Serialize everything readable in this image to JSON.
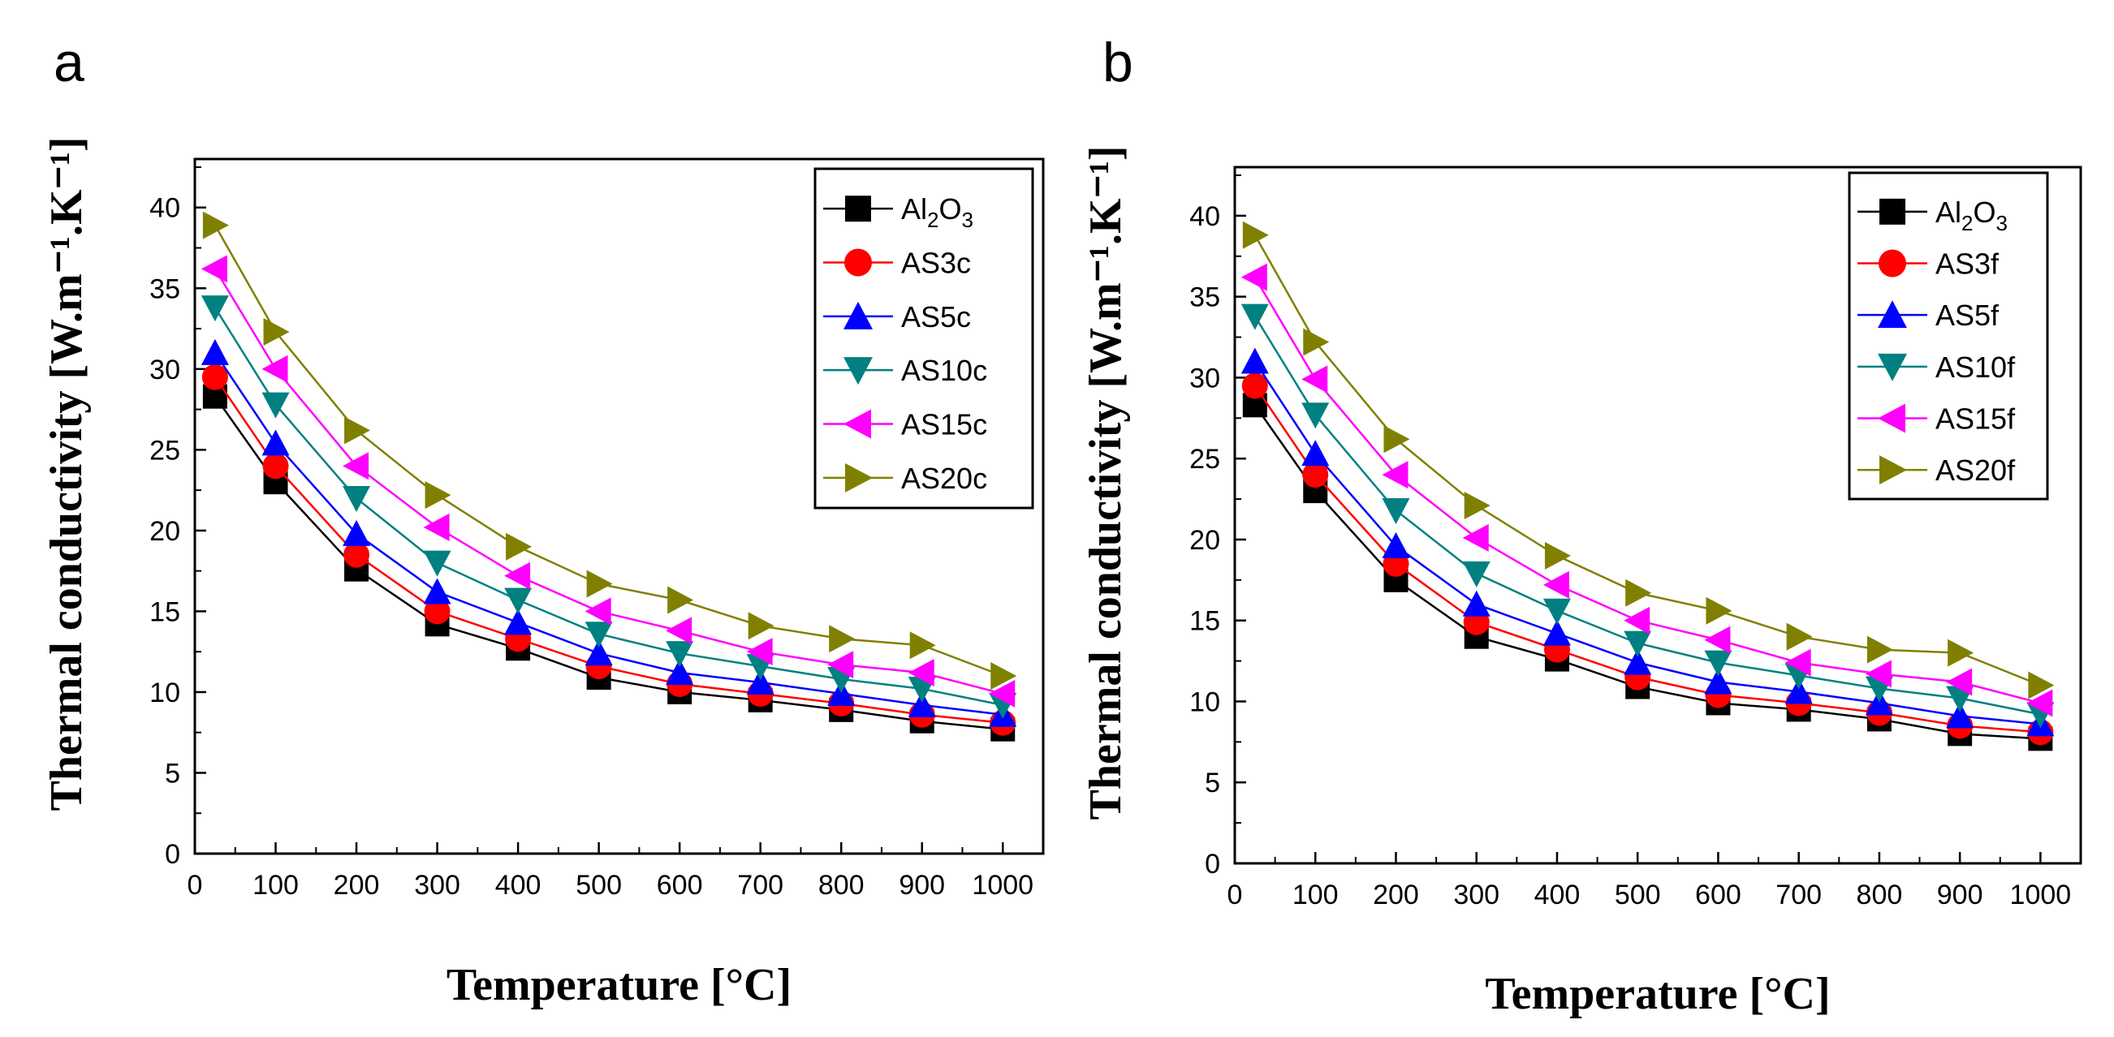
{
  "colors": {
    "Al2O3": "#000000",
    "AS3": "#ff0000",
    "AS5": "#0000ff",
    "AS10": "#008080",
    "AS15": "#ff00ff",
    "AS20": "#808000"
  },
  "chart_data": [
    {
      "type": "line",
      "panel_label": "a",
      "xlabel": "Temperature [°C]",
      "ylabel": "Thermal conductivity [W.m⁻¹.K⁻¹]",
      "xlim": [
        0,
        1050
      ],
      "ylim": [
        0,
        43
      ],
      "xticks": [
        0,
        100,
        200,
        300,
        400,
        500,
        600,
        700,
        800,
        900,
        1000
      ],
      "yticks": [
        0,
        5,
        10,
        15,
        20,
        25,
        30,
        35,
        40
      ],
      "legend_position": "top-right",
      "x": [
        25,
        100,
        200,
        300,
        400,
        500,
        600,
        700,
        800,
        900,
        1000
      ],
      "series": [
        {
          "name": "Al2O3",
          "label_base": "Al",
          "sub1": "2",
          "label_mid": "O",
          "sub2": "3",
          "marker": "square",
          "color_key": "Al2O3",
          "values": [
            28.3,
            23.0,
            17.6,
            14.2,
            12.7,
            10.9,
            10.0,
            9.5,
            8.9,
            8.2,
            7.7
          ]
        },
        {
          "name": "AS3c",
          "marker": "circle",
          "color_key": "AS3",
          "values": [
            29.5,
            24.0,
            18.5,
            15.0,
            13.3,
            11.6,
            10.5,
            9.9,
            9.3,
            8.6,
            8.1
          ]
        },
        {
          "name": "AS5c",
          "marker": "triangle-up",
          "color_key": "AS5",
          "values": [
            31.0,
            25.4,
            19.8,
            16.2,
            14.3,
            12.4,
            11.2,
            10.6,
            9.9,
            9.2,
            8.6
          ]
        },
        {
          "name": "AS10c",
          "marker": "triangle-down",
          "color_key": "AS10",
          "values": [
            33.8,
            27.8,
            22.0,
            18.0,
            15.7,
            13.6,
            12.4,
            11.6,
            10.8,
            10.2,
            9.2
          ]
        },
        {
          "name": "AS15c",
          "marker": "triangle-left",
          "color_key": "AS15",
          "values": [
            36.2,
            30.0,
            24.0,
            20.2,
            17.2,
            15.0,
            13.8,
            12.5,
            11.7,
            11.2,
            9.9
          ]
        },
        {
          "name": "AS20c",
          "marker": "triangle-right",
          "color_key": "AS20",
          "values": [
            38.9,
            32.3,
            26.2,
            22.2,
            19.0,
            16.7,
            15.7,
            14.1,
            13.3,
            12.9,
            11.0
          ]
        }
      ]
    },
    {
      "type": "line",
      "panel_label": "b",
      "xlabel": "Temperature [°C]",
      "ylabel": "Thermal conductivity [W.m⁻¹.K⁻¹]",
      "xlim": [
        0,
        1050
      ],
      "ylim": [
        0,
        43
      ],
      "xticks": [
        0,
        100,
        200,
        300,
        400,
        500,
        600,
        700,
        800,
        900,
        1000
      ],
      "yticks": [
        0,
        5,
        10,
        15,
        20,
        25,
        30,
        35,
        40
      ],
      "legend_position": "top-right",
      "x": [
        25,
        100,
        200,
        300,
        400,
        500,
        600,
        700,
        800,
        900,
        1000
      ],
      "series": [
        {
          "name": "Al2O3",
          "label_base": "Al",
          "sub1": "2",
          "label_mid": "O",
          "sub2": "3",
          "marker": "square",
          "color_key": "Al2O3",
          "values": [
            28.3,
            23.0,
            17.5,
            14.0,
            12.6,
            10.9,
            9.9,
            9.5,
            8.9,
            8.0,
            7.7
          ]
        },
        {
          "name": "AS3f",
          "marker": "circle",
          "color_key": "AS3",
          "values": [
            29.5,
            24.0,
            18.5,
            14.9,
            13.2,
            11.5,
            10.4,
            9.9,
            9.3,
            8.5,
            8.1
          ]
        },
        {
          "name": "AS5f",
          "marker": "triangle-up",
          "color_key": "AS5",
          "values": [
            31.0,
            25.3,
            19.6,
            16.0,
            14.2,
            12.4,
            11.2,
            10.6,
            9.9,
            9.1,
            8.6
          ]
        },
        {
          "name": "AS10f",
          "marker": "triangle-down",
          "color_key": "AS10",
          "values": [
            33.8,
            27.7,
            21.8,
            17.9,
            15.6,
            13.6,
            12.4,
            11.6,
            10.8,
            10.2,
            9.2
          ]
        },
        {
          "name": "AS15f",
          "marker": "triangle-left",
          "color_key": "AS15",
          "values": [
            36.2,
            29.9,
            24.0,
            20.1,
            17.2,
            15.0,
            13.8,
            12.4,
            11.7,
            11.2,
            9.9
          ]
        },
        {
          "name": "AS20f",
          "marker": "triangle-right",
          "color_key": "AS20",
          "values": [
            38.8,
            32.2,
            26.2,
            22.1,
            19.0,
            16.7,
            15.6,
            14.0,
            13.2,
            13.0,
            11.0
          ]
        }
      ]
    }
  ]
}
